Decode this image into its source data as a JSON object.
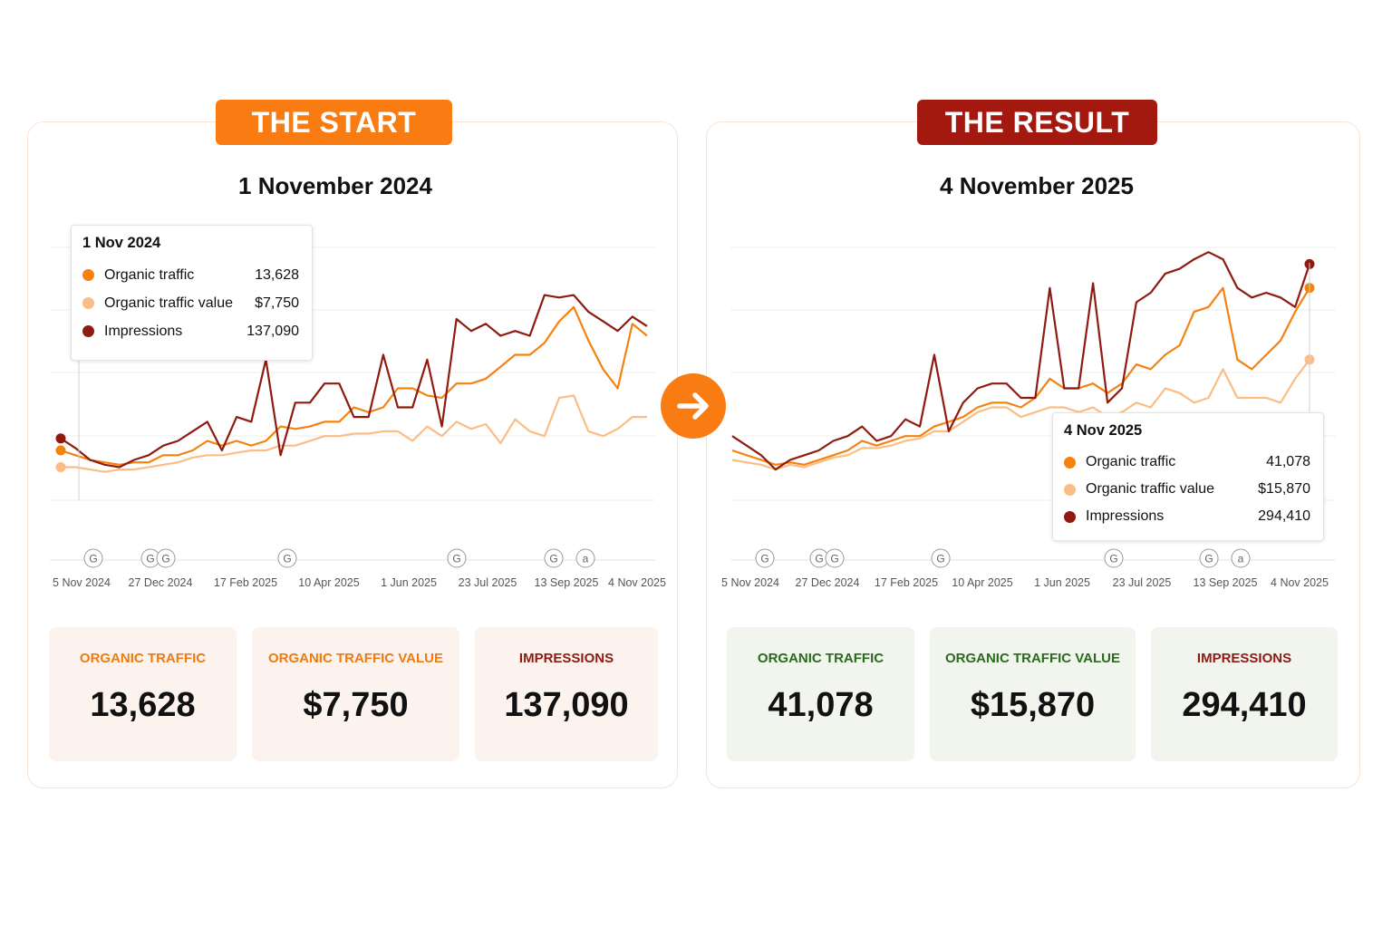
{
  "colors": {
    "organic_traffic": "#f5820f",
    "organic_traffic_value": "#fbbd84",
    "impressions": "#8f1a10",
    "start_badge": "#f97c12",
    "result_badge": "#a3180f"
  },
  "start": {
    "badge": "THE START",
    "date_title": "1 November 2024",
    "tooltip": {
      "date": "1 Nov 2024",
      "rows": [
        {
          "label": "Organic traffic",
          "value": "13,628"
        },
        {
          "label": "Organic traffic value",
          "value": "$7,750"
        },
        {
          "label": "Impressions",
          "value": "137,090"
        }
      ]
    },
    "stats": [
      {
        "label": "ORGANIC TRAFFIC",
        "value": "13,628"
      },
      {
        "label": "ORGANIC TRAFFIC VALUE",
        "value": "$7,750"
      },
      {
        "label": "IMPRESSIONS",
        "value": "137,090"
      }
    ]
  },
  "result": {
    "badge": "THE RESULT",
    "date_title": "4 November 2025",
    "tooltip": {
      "date": "4 Nov 2025",
      "rows": [
        {
          "label": "Organic traffic",
          "value": "41,078"
        },
        {
          "label": "Organic traffic value",
          "value": "$15,870"
        },
        {
          "label": "Impressions",
          "value": "294,410"
        }
      ]
    },
    "stats": [
      {
        "label": "ORGANIC TRAFFIC",
        "value": "41,078"
      },
      {
        "label": "ORGANIC TRAFFIC VALUE",
        "value": "$15,870"
      },
      {
        "label": "IMPRESSIONS",
        "value": "294,410"
      }
    ]
  },
  "arrow_icon": "arrow-right-icon",
  "chart_data": [
    {
      "type": "line",
      "x_tick_labels": [
        "5 Nov 2024",
        "27 Dec 2024",
        "17 Feb 2025",
        "10 Apr 2025",
        "1 Jun 2025",
        "23 Jul 2025",
        "13 Sep 2025",
        "4 Nov 2025"
      ],
      "grid": true,
      "series": [
        {
          "name": "Organic traffic",
          "values": [
            22,
            20,
            18,
            17,
            16,
            17,
            17,
            20,
            20,
            22,
            26,
            24,
            26,
            24,
            26,
            32,
            31,
            32,
            34,
            34,
            40,
            38,
            40,
            48,
            48,
            45,
            44,
            50,
            50,
            52,
            57,
            62,
            62,
            67,
            76,
            82,
            68,
            56,
            48,
            75,
            70
          ]
        },
        {
          "name": "Organic traffic value",
          "values": [
            15,
            15,
            14,
            13,
            14,
            14,
            15,
            16,
            17,
            19,
            20,
            20,
            21,
            22,
            22,
            24,
            24,
            26,
            28,
            28,
            29,
            29,
            30,
            30,
            26,
            32,
            28,
            34,
            31,
            33,
            25,
            35,
            30,
            28,
            44,
            45,
            30,
            28,
            31,
            36,
            36
          ]
        },
        {
          "name": "Impressions",
          "values": [
            27,
            23,
            18,
            16,
            15,
            18,
            20,
            24,
            26,
            30,
            34,
            22,
            36,
            34,
            60,
            20,
            42,
            42,
            50,
            50,
            36,
            36,
            62,
            40,
            40,
            60,
            32,
            77,
            72,
            75,
            70,
            72,
            70,
            87,
            86,
            87,
            80,
            76,
            72,
            78,
            74
          ]
        }
      ],
      "events": [
        {
          "x": "5 Nov 2024",
          "label": "G"
        },
        {
          "x": "27 Dec 2024",
          "label": "G"
        },
        {
          "x": "27 Dec 2024",
          "label": "G"
        },
        {
          "x": "17 Feb 2025",
          "label": "G"
        },
        {
          "x": "23 Jul 2025",
          "label": "G"
        },
        {
          "x": "13 Sep 2025",
          "label": "G"
        },
        {
          "x": "13 Sep 2025",
          "label": "a"
        }
      ],
      "highlighted_point": {
        "date": "1 Nov 2024",
        "organic_traffic": 13628,
        "organic_traffic_value": 7750,
        "impressions": 137090
      }
    },
    {
      "type": "line",
      "x_tick_labels": [
        "5 Nov 2024",
        "27 Dec 2024",
        "17 Feb 2025",
        "10 Apr 2025",
        "1 Jun 2025",
        "23 Jul 2025",
        "13 Sep 2025",
        "4 Nov 2025"
      ],
      "grid": true,
      "series": [
        {
          "name": "Organic traffic",
          "values": [
            22,
            20,
            18,
            16,
            17,
            16,
            18,
            20,
            22,
            26,
            24,
            26,
            28,
            28,
            32,
            34,
            36,
            40,
            42,
            42,
            40,
            44,
            52,
            48,
            48,
            50,
            46,
            50,
            58,
            56,
            62,
            66,
            80,
            82,
            90,
            60,
            56,
            62,
            68,
            80,
            90
          ]
        },
        {
          "name": "Organic traffic value",
          "values": [
            18,
            17,
            16,
            14,
            16,
            15,
            17,
            19,
            20,
            23,
            23,
            24,
            26,
            27,
            30,
            30,
            34,
            38,
            40,
            40,
            36,
            38,
            40,
            40,
            38,
            40,
            36,
            38,
            42,
            40,
            48,
            46,
            42,
            44,
            56,
            44,
            44,
            44,
            42,
            52,
            60
          ]
        },
        {
          "name": "Impressions",
          "values": [
            28,
            24,
            20,
            14,
            18,
            20,
            22,
            26,
            28,
            32,
            26,
            28,
            35,
            32,
            62,
            30,
            42,
            48,
            50,
            50,
            44,
            44,
            90,
            48,
            48,
            92,
            42,
            48,
            84,
            88,
            96,
            98,
            102,
            105,
            102,
            90,
            86,
            88,
            86,
            82,
            100
          ]
        }
      ],
      "events": [
        {
          "x": "5 Nov 2024",
          "label": "G"
        },
        {
          "x": "27 Dec 2024",
          "label": "G"
        },
        {
          "x": "27 Dec 2024",
          "label": "G"
        },
        {
          "x": "17 Feb 2025",
          "label": "G"
        },
        {
          "x": "23 Jul 2025",
          "label": "G"
        },
        {
          "x": "13 Sep 2025",
          "label": "G"
        },
        {
          "x": "13 Sep 2025",
          "label": "a"
        }
      ],
      "highlighted_point": {
        "date": "4 Nov 2025",
        "organic_traffic": 41078,
        "organic_traffic_value": 15870,
        "impressions": 294410
      }
    }
  ]
}
